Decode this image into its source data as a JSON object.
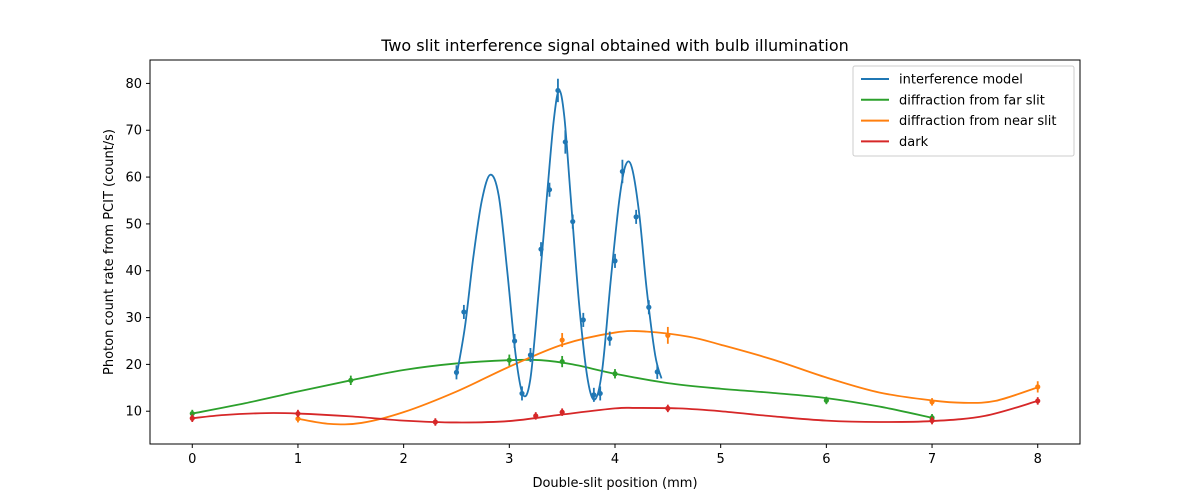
{
  "chart_data": {
    "type": "line",
    "title": "Two slit interference signal obtained with bulb illumination",
    "xlabel": "Double-slit position (mm)",
    "ylabel": "Photon count rate from PCIT (count/s)",
    "xlim": [
      -0.4,
      8.4
    ],
    "ylim": [
      3,
      85
    ],
    "x_ticks": [
      0,
      1,
      2,
      3,
      4,
      5,
      6,
      7,
      8
    ],
    "y_ticks": [
      10,
      20,
      30,
      40,
      50,
      60,
      70,
      80
    ],
    "grid": false,
    "legend_position": "top-right",
    "series": [
      {
        "name": "interference model",
        "color": "#1f77b4",
        "curve": [
          [
            2.5,
            17.5
          ],
          [
            2.58,
            28
          ],
          [
            2.66,
            43
          ],
          [
            2.74,
            55
          ],
          [
            2.82,
            60.5
          ],
          [
            2.9,
            56
          ],
          [
            2.98,
            40
          ],
          [
            3.06,
            22
          ],
          [
            3.13,
            13.5
          ],
          [
            3.2,
            17
          ],
          [
            3.28,
            36
          ],
          [
            3.36,
            57
          ],
          [
            3.42,
            72
          ],
          [
            3.47,
            78.5
          ],
          [
            3.52,
            73
          ],
          [
            3.58,
            56
          ],
          [
            3.66,
            33
          ],
          [
            3.74,
            17
          ],
          [
            3.81,
            12.5
          ],
          [
            3.88,
            19
          ],
          [
            3.96,
            38
          ],
          [
            4.04,
            55
          ],
          [
            4.1,
            62.5
          ],
          [
            4.16,
            62
          ],
          [
            4.23,
            52
          ],
          [
            4.3,
            36
          ],
          [
            4.38,
            22
          ],
          [
            4.44,
            17
          ]
        ],
        "points": [
          [
            2.5,
            18.3,
            1.5
          ],
          [
            2.57,
            31.2,
            1.5
          ],
          [
            3.05,
            25,
            1.5
          ],
          [
            3.12,
            13.8,
            1.5
          ],
          [
            3.2,
            22,
            1.5
          ],
          [
            3.3,
            44.6,
            1.5
          ],
          [
            3.38,
            57.3,
            1.5
          ],
          [
            3.46,
            78.5,
            2.5
          ],
          [
            3.53,
            67.5,
            2.5
          ],
          [
            3.6,
            50.5,
            1.5
          ],
          [
            3.7,
            29.5,
            1.5
          ],
          [
            3.8,
            13.5,
            1.5
          ],
          [
            3.86,
            13.8,
            1.5
          ],
          [
            3.95,
            25.5,
            1.5
          ],
          [
            4.0,
            42.1,
            1.5
          ],
          [
            4.07,
            61.2,
            2.5
          ],
          [
            4.2,
            51.5,
            1.5
          ],
          [
            4.32,
            32.2,
            1.5
          ],
          [
            4.4,
            18.4,
            1.5
          ]
        ]
      },
      {
        "name": "diffraction from far slit",
        "color": "#2ca02c",
        "curve": [
          [
            0,
            9.5
          ],
          [
            0.5,
            11.7
          ],
          [
            1,
            14.2
          ],
          [
            1.5,
            16.6
          ],
          [
            2,
            18.8
          ],
          [
            2.5,
            20.2
          ],
          [
            3,
            20.9
          ],
          [
            3.3,
            20.9
          ],
          [
            3.6,
            20
          ],
          [
            4,
            18
          ],
          [
            4.5,
            16
          ],
          [
            5,
            14.8
          ],
          [
            5.5,
            13.9
          ],
          [
            6,
            12.8
          ],
          [
            6.5,
            11
          ],
          [
            7,
            8.6
          ]
        ],
        "points": [
          [
            0,
            9.5,
            0.8
          ],
          [
            1.5,
            16.6,
            1.0
          ],
          [
            3,
            20.9,
            1.2
          ],
          [
            3.5,
            20.6,
            1.2
          ],
          [
            4,
            18,
            1.0
          ],
          [
            6,
            12.3,
            0.8
          ],
          [
            7,
            8.6,
            0.8
          ]
        ]
      },
      {
        "name": "diffraction from near slit",
        "color": "#ff7f0e",
        "curve": [
          [
            1,
            8.4
          ],
          [
            1.3,
            7.3
          ],
          [
            1.6,
            7.5
          ],
          [
            2,
            9.8
          ],
          [
            2.5,
            14.2
          ],
          [
            3,
            19.5
          ],
          [
            3.5,
            24.2
          ],
          [
            4,
            26.8
          ],
          [
            4.3,
            27
          ],
          [
            4.7,
            25.9
          ],
          [
            5,
            24.2
          ],
          [
            5.5,
            21
          ],
          [
            6,
            17.2
          ],
          [
            6.5,
            14
          ],
          [
            7,
            12.3
          ],
          [
            7.3,
            11.8
          ],
          [
            7.6,
            12.2
          ],
          [
            8,
            15.1
          ]
        ],
        "points": [
          [
            1,
            8.4,
            0.8
          ],
          [
            3.5,
            25.2,
            1.5
          ],
          [
            4.5,
            26.2,
            1.8
          ],
          [
            7,
            12,
            0.8
          ],
          [
            8,
            15.2,
            1.2
          ]
        ]
      },
      {
        "name": "dark",
        "color": "#d62728",
        "curve": [
          [
            0,
            8.5
          ],
          [
            0.3,
            9.2
          ],
          [
            0.7,
            9.6
          ],
          [
            1,
            9.5
          ],
          [
            1.5,
            8.9
          ],
          [
            2,
            8
          ],
          [
            2.5,
            7.6
          ],
          [
            3,
            7.9
          ],
          [
            3.5,
            9.3
          ],
          [
            4,
            10.6
          ],
          [
            4.2,
            10.7
          ],
          [
            4.6,
            10.6
          ],
          [
            5,
            10
          ],
          [
            5.5,
            8.9
          ],
          [
            6,
            8
          ],
          [
            6.5,
            7.7
          ],
          [
            7,
            7.9
          ],
          [
            7.5,
            9
          ],
          [
            8,
            12.2
          ]
        ],
        "points": [
          [
            0,
            8.5,
            0.8
          ],
          [
            1,
            9.5,
            0.8
          ],
          [
            2.3,
            7.7,
            0.8
          ],
          [
            3.25,
            9,
            0.8
          ],
          [
            3.5,
            9.8,
            0.8
          ],
          [
            4.5,
            10.6,
            0.8
          ],
          [
            7,
            8,
            0.8
          ],
          [
            8,
            12.2,
            0.8
          ]
        ]
      }
    ]
  }
}
